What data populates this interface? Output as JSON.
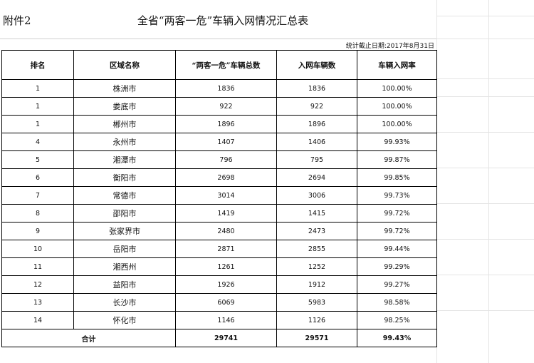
{
  "header": {
    "attachment": "附件2",
    "title": "全省“两客一危”车辆入网情况汇总表",
    "stat_date": "统计截止日期:2017年8月31日"
  },
  "table": {
    "columns": [
      "排名",
      "区域名称",
      "“两客一危”车辆总数",
      "入网车辆数",
      "车辆入网率"
    ],
    "rows": [
      {
        "rank": "1",
        "region": "株洲市",
        "total": "1836",
        "online": "1836",
        "rate": "100.00%"
      },
      {
        "rank": "1",
        "region": "娄底市",
        "total": "922",
        "online": "922",
        "rate": "100.00%"
      },
      {
        "rank": "1",
        "region": "郴州市",
        "total": "1896",
        "online": "1896",
        "rate": "100.00%"
      },
      {
        "rank": "4",
        "region": "永州市",
        "total": "1407",
        "online": "1406",
        "rate": "99.93%"
      },
      {
        "rank": "5",
        "region": "湘潭市",
        "total": "796",
        "online": "795",
        "rate": "99.87%"
      },
      {
        "rank": "6",
        "region": "衡阳市",
        "total": "2698",
        "online": "2694",
        "rate": "99.85%"
      },
      {
        "rank": "7",
        "region": "常德市",
        "total": "3014",
        "online": "3006",
        "rate": "99.73%"
      },
      {
        "rank": "8",
        "region": "邵阳市",
        "total": "1419",
        "online": "1415",
        "rate": "99.72%"
      },
      {
        "rank": "9",
        "region": "张家界市",
        "total": "2480",
        "online": "2473",
        "rate": "99.72%"
      },
      {
        "rank": "10",
        "region": "岳阳市",
        "total": "2871",
        "online": "2855",
        "rate": "99.44%"
      },
      {
        "rank": "11",
        "region": "湘西州",
        "total": "1261",
        "online": "1252",
        "rate": "99.29%"
      },
      {
        "rank": "12",
        "region": "益阳市",
        "total": "1926",
        "online": "1912",
        "rate": "99.27%"
      },
      {
        "rank": "13",
        "region": "长沙市",
        "total": "6069",
        "online": "5983",
        "rate": "98.58%"
      },
      {
        "rank": "14",
        "region": "怀化市",
        "total": "1146",
        "online": "1126",
        "rate": "98.25%"
      }
    ],
    "footer": {
      "label": "合计",
      "total": "29741",
      "online": "29571",
      "rate": "99.43%"
    }
  }
}
